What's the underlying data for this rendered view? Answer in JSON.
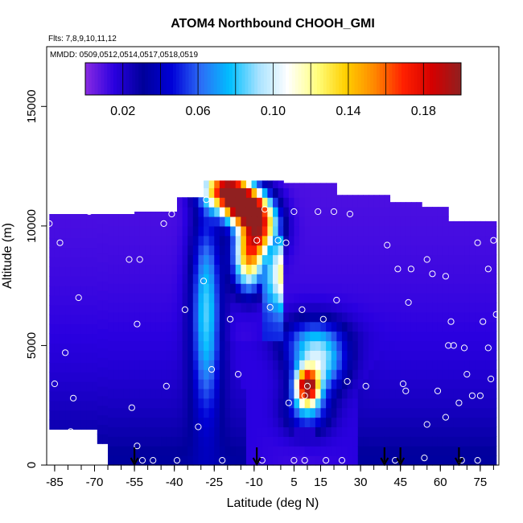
{
  "chart_data": {
    "type": "heatmap",
    "title": "ATOM4 Northbound CHOOH_GMI",
    "annotations": [
      "Flts: 7,8,9,10,11,12",
      "MMDD: 0509,0512,0514,0517,0518,0519"
    ],
    "xlabel": "Latitude (deg N)",
    "ylabel": "Altitude (m)",
    "xlim": [
      -88,
      82
    ],
    "ylim": [
      0,
      17500
    ],
    "x_ticks": [
      -85,
      -70,
      -55,
      -40,
      -25,
      -10,
      5,
      15,
      30,
      45,
      60,
      75
    ],
    "y_ticks": [
      0,
      5000,
      10000,
      15000
    ],
    "colorbar": {
      "range": [
        0.0,
        0.2
      ],
      "tick_values": [
        0.02,
        0.06,
        0.1,
        0.14,
        0.18
      ],
      "tick_labels": [
        "0.02",
        "0.06",
        "0.10",
        "0.14",
        "0.18"
      ],
      "colors": [
        "#8a2be2",
        "#2a00e0",
        "#00009a",
        "#0000d8",
        "#2d6df6",
        "#00bfff",
        "#a8e2ff",
        "#ffffff",
        "#ffff80",
        "#ffd000",
        "#ff8800",
        "#ff2000",
        "#d40000",
        "#902020"
      ]
    },
    "sample_points": [
      [
        -87,
        10100
      ],
      [
        -85,
        3400
      ],
      [
        -83,
        9300
      ],
      [
        -81,
        4700
      ],
      [
        -79,
        1400
      ],
      [
        -78,
        2800
      ],
      [
        -76,
        7000
      ],
      [
        -72,
        10600
      ],
      [
        -57,
        8600
      ],
      [
        -56,
        2400
      ],
      [
        -54,
        5900
      ],
      [
        -54,
        800
      ],
      [
        -53,
        8600
      ],
      [
        -52,
        200
      ],
      [
        -48,
        200
      ],
      [
        -44,
        10100
      ],
      [
        -43,
        3300
      ],
      [
        -41,
        10500
      ],
      [
        -39,
        200
      ],
      [
        -36,
        6500
      ],
      [
        -31,
        1600
      ],
      [
        -29,
        7700
      ],
      [
        -28,
        11100
      ],
      [
        -26,
        4000
      ],
      [
        -22,
        200
      ],
      [
        -19,
        6100
      ],
      [
        -16,
        3800
      ],
      [
        -9,
        9400
      ],
      [
        -7,
        200
      ],
      [
        -6,
        10700
      ],
      [
        -4,
        6600
      ],
      [
        -1,
        9400
      ],
      [
        2,
        9300
      ],
      [
        3,
        2600
      ],
      [
        5,
        200
      ],
      [
        5,
        10600
      ],
      [
        8,
        6500
      ],
      [
        9,
        200
      ],
      [
        9,
        2900
      ],
      [
        10,
        3300
      ],
      [
        14,
        10600
      ],
      [
        16,
        6100
      ],
      [
        17,
        200
      ],
      [
        20,
        10600
      ],
      [
        21,
        6900
      ],
      [
        23,
        200
      ],
      [
        25,
        3500
      ],
      [
        26,
        10500
      ],
      [
        32,
        3300
      ],
      [
        40,
        9200
      ],
      [
        43,
        200
      ],
      [
        44,
        8200
      ],
      [
        46,
        3400
      ],
      [
        47,
        3100
      ],
      [
        47,
        11700
      ],
      [
        48,
        6800
      ],
      [
        49,
        8200
      ],
      [
        54,
        300
      ],
      [
        55,
        1700
      ],
      [
        55,
        8600
      ],
      [
        57,
        8000
      ],
      [
        58,
        11200
      ],
      [
        59,
        3100
      ],
      [
        62,
        7900
      ],
      [
        62,
        2000
      ],
      [
        63,
        5000
      ],
      [
        64,
        6000
      ],
      [
        65,
        5000
      ],
      [
        67,
        2600
      ],
      [
        68,
        200
      ],
      [
        69,
        4900
      ],
      [
        70,
        3800
      ],
      [
        71,
        10500
      ],
      [
        72,
        2900
      ],
      [
        74,
        9300
      ],
      [
        74,
        200
      ],
      [
        75,
        2900
      ],
      [
        75,
        10700
      ],
      [
        76,
        6000
      ],
      [
        78,
        4900
      ],
      [
        78,
        8200
      ],
      [
        79,
        3600
      ],
      [
        80,
        9400
      ],
      [
        81,
        6300
      ]
    ],
    "arrows_x": [
      -55,
      -9,
      39,
      45,
      67
    ],
    "fields": {
      "background": {
        "a": 0.008,
        "b": 0.025,
        "c": 0.02
      },
      "blobs": [
        {
          "lat": -28,
          "alt": 6500,
          "slat": 4,
          "salt": 3000,
          "amp": 0.07,
          "tilt": -0.0014
        },
        {
          "lat": -20,
          "alt": 11600,
          "slat": 6,
          "salt": 600,
          "amp": 0.18
        },
        {
          "lat": -14,
          "alt": 10800,
          "slat": 5,
          "salt": 500,
          "amp": 0.17
        },
        {
          "lat": -8,
          "alt": 10000,
          "slat": 5,
          "salt": 800,
          "amp": 0.15
        },
        {
          "lat": -12,
          "alt": 8600,
          "slat": 4,
          "salt": 900,
          "amp": 0.12
        },
        {
          "lat": 10,
          "alt": 3300,
          "slat": 3,
          "salt": 500,
          "amp": 0.16
        },
        {
          "lat": 14,
          "alt": 4200,
          "slat": 7,
          "salt": 800,
          "amp": 0.07
        },
        {
          "lat": 10,
          "alt": 2300,
          "slat": 6,
          "salt": 700,
          "amp": 0.05
        },
        {
          "lat": 12,
          "alt": 5300,
          "slat": 9,
          "salt": 700,
          "amp": 0.04
        }
      ]
    }
  }
}
